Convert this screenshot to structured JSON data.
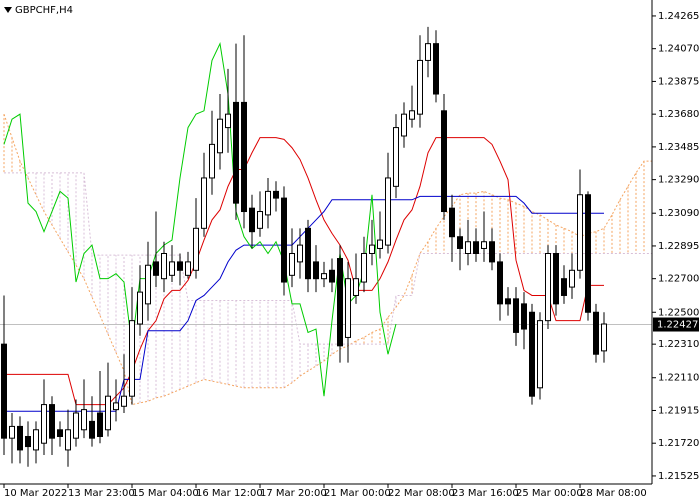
{
  "chart_data": {
    "type": "candlestick",
    "title": "GBPCHF,H4",
    "categories": [
      "10 Mar 2022",
      null,
      null,
      null,
      null,
      null,
      null,
      null,
      "13 Mar 23:00",
      null,
      null,
      null,
      null,
      null,
      null,
      null,
      "15 Mar 04:00",
      null,
      null,
      null,
      null,
      null,
      null,
      null,
      "16 Mar 12:00",
      null,
      null,
      null,
      null,
      null,
      null,
      null,
      "17 Mar 20:00",
      null,
      null,
      null,
      null,
      null,
      null,
      null,
      "21 Mar 00:00",
      null,
      null,
      null,
      null,
      null,
      null,
      null,
      "22 Mar 08:00",
      null,
      null,
      null,
      null,
      null,
      null,
      null,
      "23 Mar 16:00",
      null,
      null,
      null,
      null,
      null,
      null,
      null,
      "25 Mar 00:00",
      null,
      null,
      null,
      null,
      null,
      null,
      null,
      "28 Mar 08:00",
      null,
      null,
      null,
      null,
      null,
      null,
      null,
      null,
      null
    ],
    "candles": {
      "up_color": "#ffffff",
      "down_color": "#000000",
      "open": [
        1.2231,
        1.2175,
        1.2182,
        1.2176,
        1.2168,
        1.2172,
        1.2195,
        1.218,
        1.2168,
        1.2175,
        1.218,
        1.2185,
        1.219,
        1.218,
        1.2192,
        1.2194,
        1.22,
        1.2243,
        1.2255,
        1.228,
        1.227,
        1.2272,
        1.228,
        1.2272,
        1.2275,
        1.23,
        1.233,
        1.2345,
        1.236,
        1.2375,
        1.2375,
        1.2312,
        1.23,
        1.2308,
        1.2322,
        1.2318,
        1.2272,
        1.228,
        1.23,
        1.228,
        1.227,
        1.2275,
        1.2282,
        1.2235,
        1.226,
        1.2268,
        1.2285,
        1.2288,
        1.229,
        1.2325,
        1.2355,
        1.2365,
        1.2368,
        1.24,
        1.241,
        1.237,
        1.2312,
        1.2295,
        1.2285,
        1.2292,
        1.2288,
        1.2292,
        1.228,
        1.2258,
        1.2258,
        1.2255,
        1.225,
        1.2205,
        1.2245,
        1.2285,
        1.227,
        1.2265,
        1.2275,
        1.232,
        1.225,
        1.2227,
        null,
        null,
        null,
        null,
        null,
        null
      ],
      "high": [
        1.226,
        1.219,
        1.2188,
        1.2185,
        1.2185,
        1.221,
        1.22,
        1.2185,
        1.2192,
        1.2198,
        1.221,
        1.22,
        1.2215,
        1.222,
        1.221,
        1.2225,
        1.2265,
        1.2278,
        1.2292,
        1.231,
        1.2292,
        1.229,
        1.2285,
        1.2286,
        1.2318,
        1.2345,
        1.237,
        1.238,
        1.2395,
        1.241,
        1.2415,
        1.232,
        1.2322,
        1.233,
        1.2328,
        1.2325,
        1.23,
        1.23,
        1.2305,
        1.229,
        1.228,
        1.2282,
        1.229,
        1.228,
        1.2285,
        1.2295,
        1.2305,
        1.231,
        1.2345,
        1.2368,
        1.2375,
        1.2385,
        1.2415,
        1.242,
        1.2418,
        1.238,
        1.232,
        1.23,
        1.2305,
        1.23,
        1.231,
        1.23,
        1.2285,
        1.2265,
        1.2265,
        1.2262,
        1.2255,
        1.225,
        1.229,
        1.229,
        1.2278,
        1.2285,
        1.2335,
        1.2322,
        1.2255,
        1.225,
        null,
        null,
        null,
        null,
        null,
        null
      ],
      "low": [
        1.2165,
        1.216,
        1.216,
        1.2158,
        1.216,
        1.2165,
        1.2165,
        1.217,
        1.2158,
        1.217,
        1.2175,
        1.217,
        1.2172,
        1.2176,
        1.2185,
        1.219,
        1.2195,
        1.2236,
        1.2245,
        1.2265,
        1.2262,
        1.2268,
        1.2266,
        1.227,
        1.227,
        1.2295,
        1.232,
        1.2335,
        1.2345,
        1.2305,
        1.23,
        1.2288,
        1.2295,
        1.23,
        1.231,
        1.226,
        1.2265,
        1.227,
        1.2262,
        1.2262,
        1.2265,
        1.2262,
        1.222,
        1.222,
        1.2255,
        1.2262,
        1.2278,
        1.2282,
        1.2285,
        1.2318,
        1.2348,
        1.236,
        1.236,
        1.239,
        1.2375,
        1.2305,
        1.228,
        1.2275,
        1.2278,
        1.228,
        1.228,
        1.2275,
        1.2245,
        1.2248,
        1.223,
        1.2228,
        1.2195,
        1.2198,
        1.224,
        1.2248,
        1.2255,
        1.2258,
        1.227,
        1.2245,
        1.222,
        1.222,
        null,
        null,
        null,
        null,
        null,
        null
      ],
      "close": [
        1.2175,
        1.2182,
        1.2168,
        1.217,
        1.218,
        1.2195,
        1.2175,
        1.2176,
        1.218,
        1.219,
        1.2192,
        1.2175,
        1.2176,
        1.22,
        1.2196,
        1.22,
        1.2245,
        1.2262,
        1.2278,
        1.2272,
        1.2285,
        1.228,
        1.2275,
        1.228,
        1.23,
        1.233,
        1.235,
        1.2365,
        1.2368,
        1.2315,
        1.231,
        1.2298,
        1.231,
        1.2322,
        1.2318,
        1.2268,
        1.2285,
        1.229,
        1.227,
        1.227,
        1.2273,
        1.2268,
        1.223,
        1.227,
        1.227,
        1.2285,
        1.229,
        1.2293,
        1.233,
        1.236,
        1.2368,
        1.237,
        1.24,
        1.241,
        1.238,
        1.231,
        1.2295,
        1.2288,
        1.2292,
        1.2285,
        1.2292,
        1.228,
        1.2255,
        1.2255,
        1.2238,
        1.224,
        1.22,
        1.2245,
        1.2285,
        1.2255,
        1.226,
        1.2275,
        1.232,
        1.225,
        1.2225,
        1.2243,
        null,
        null,
        null,
        null,
        null,
        null
      ]
    },
    "lines": [
      {
        "color": "#dd0000",
        "values": [
          1.2213,
          1.2213,
          1.2213,
          1.2213,
          1.2213,
          1.2213,
          1.2213,
          1.2213,
          1.2213,
          1.2195,
          1.2195,
          1.2195,
          1.2195,
          1.2195,
          1.22,
          1.2205,
          1.2215,
          1.2228,
          1.2239,
          1.2245,
          1.2258,
          1.2263,
          1.2263,
          1.2269,
          1.228,
          1.2293,
          1.2305,
          1.2311,
          1.2325,
          1.2335,
          1.2335,
          1.2345,
          1.2354,
          1.2354,
          1.2354,
          1.2353,
          1.2348,
          1.2341,
          1.233,
          1.2317,
          1.2305,
          1.2297,
          1.229,
          1.2281,
          1.2263,
          1.2263,
          1.2263,
          1.227,
          1.228,
          1.2293,
          1.2305,
          1.2311,
          1.2325,
          1.2345,
          1.2354,
          1.2354,
          1.2354,
          1.2354,
          1.2354,
          1.2354,
          1.2354,
          1.235,
          1.234,
          1.2329,
          1.2281,
          1.2263,
          1.226,
          1.226,
          1.226,
          1.2245,
          1.2245,
          1.2245,
          1.2245,
          1.2266,
          1.2266,
          1.2266,
          null,
          null,
          null,
          null,
          null,
          null
        ]
      },
      {
        "color": "#0000cc",
        "values": [
          1.2191,
          1.2191,
          1.2191,
          1.2191,
          1.2191,
          1.2191,
          1.2191,
          1.2191,
          1.2191,
          1.2191,
          1.2191,
          1.2191,
          1.2191,
          1.2191,
          1.2191,
          1.221,
          1.221,
          1.221,
          1.2239,
          1.2239,
          1.2239,
          1.2239,
          1.2239,
          1.2245,
          1.2257,
          1.226,
          1.2265,
          1.227,
          1.228,
          1.2287,
          1.229,
          1.229,
          1.229,
          1.229,
          1.229,
          1.229,
          1.229,
          1.2295,
          1.23,
          1.2305,
          1.231,
          1.2317,
          1.2317,
          1.2317,
          1.2317,
          1.2317,
          1.2317,
          1.2317,
          1.2317,
          1.2317,
          1.2317,
          1.2317,
          1.2319,
          1.2319,
          1.2319,
          1.2319,
          1.2319,
          1.2319,
          1.2319,
          1.2319,
          1.2319,
          1.2319,
          1.2319,
          1.2319,
          1.2319,
          1.2315,
          1.2309,
          1.2309,
          1.2309,
          1.2309,
          1.2309,
          1.2309,
          1.2309,
          1.2309,
          1.2309,
          1.2309,
          null,
          null,
          null,
          null,
          null,
          null
        ]
      },
      {
        "color": "#00cc00",
        "values": [
          1.235,
          1.2365,
          1.2368,
          1.2315,
          1.231,
          1.2298,
          1.231,
          1.2322,
          1.2318,
          1.2268,
          1.2285,
          1.229,
          1.227,
          1.227,
          1.2273,
          1.2268,
          1.223,
          1.227,
          1.227,
          1.2285,
          1.229,
          1.2293,
          1.233,
          1.236,
          1.2368,
          1.237,
          1.24,
          1.241,
          1.238,
          1.231,
          1.2295,
          1.2288,
          1.2292,
          1.2285,
          1.2292,
          1.228,
          1.2255,
          1.2255,
          1.2238,
          1.224,
          1.22,
          1.2245,
          1.2285,
          1.2255,
          1.226,
          1.2275,
          1.232,
          1.225,
          1.2225,
          1.2243,
          null,
          null,
          null,
          null,
          null,
          null,
          null,
          null,
          null,
          null,
          null,
          null,
          null,
          null,
          null,
          null,
          null,
          null,
          null,
          null,
          null,
          null,
          null,
          null,
          null,
          null,
          null,
          null,
          null,
          null,
          null,
          null
        ]
      }
    ],
    "cloud": {
      "up_color": "#f4a460",
      "down_color": "#d8bfd8",
      "span_a": [
        1.2368,
        1.2354,
        1.234,
        1.233,
        1.232,
        1.231,
        1.2302,
        1.2294,
        1.2286,
        1.2278,
        1.227,
        1.2259,
        1.2248,
        1.2237,
        1.2226,
        1.2215,
        1.2195,
        1.2196,
        1.2197,
        1.2199,
        1.22,
        1.2202,
        1.2204,
        1.2206,
        1.2208,
        1.221,
        1.2209,
        1.2208,
        1.2207,
        1.2206,
        1.2205,
        1.2205,
        1.2205,
        1.2205,
        1.2205,
        1.2205,
        1.2208,
        1.2212,
        1.2215,
        1.2218,
        1.2221,
        1.2225,
        1.2228,
        1.223,
        1.2233,
        1.2235,
        1.2238,
        1.224,
        1.2247,
        1.2253,
        1.226,
        1.2272,
        1.2285,
        1.2292,
        1.23,
        1.2307,
        1.2313,
        1.232,
        1.2321,
        1.2321,
        1.2322,
        1.232,
        1.2318,
        1.2317,
        1.2315,
        1.2313,
        1.231,
        1.2308,
        1.2305,
        1.2302,
        1.23,
        1.2298,
        1.2295,
        1.2297,
        1.2298,
        1.23,
        1.2308,
        1.2317,
        1.2325,
        1.2333,
        1.234,
        1.234
      ],
      "span_b": [
        1.2333,
        1.2333,
        1.2333,
        1.2333,
        1.2333,
        1.2333,
        1.2333,
        1.2333,
        1.2333,
        1.2333,
        1.2333,
        1.2284,
        1.2284,
        1.2284,
        1.2284,
        1.2284,
        1.2284,
        1.2284,
        1.2284,
        1.2284,
        1.2284,
        1.2284,
        1.2284,
        1.2257,
        1.2257,
        1.2257,
        1.2257,
        1.2257,
        1.2257,
        1.2257,
        1.2257,
        1.2257,
        1.2257,
        1.2257,
        1.2257,
        1.2257,
        1.2257,
        1.2231,
        1.2231,
        1.2231,
        1.2231,
        1.2231,
        1.2231,
        1.2231,
        1.2231,
        1.2231,
        1.2231,
        1.2231,
        1.2231,
        1.226,
        1.226,
        1.226,
        1.2285,
        1.2285,
        1.2285,
        1.2285,
        1.2285,
        1.2285,
        1.2285,
        1.2285,
        1.2285,
        1.2285,
        1.2285,
        1.2285,
        1.2285,
        1.2285,
        1.2285,
        1.2285,
        1.2285,
        1.2285,
        1.2285,
        1.2285,
        1.2285,
        1.2285,
        1.2285,
        1.2285,
        1.2285,
        1.2285,
        1.2285,
        1.2285,
        1.2285,
        1.2285
      ]
    },
    "current_price": 1.22427,
    "ylim": [
      1.21477,
      1.2436
    ],
    "yticks": [
      1.24265,
      {
        "value": 1.2407,
        "label": "1.24070"
      },
      1.23875,
      {
        "value": 1.2368,
        "label": "1.23680"
      },
      1.23485,
      {
        "value": 1.2329,
        "label": "1.23290"
      },
      {
        "value": 1.2309,
        "label": "1.23090"
      },
      1.22895,
      {
        "value": 1.227,
        "label": "1.22700"
      },
      {
        "value": 1.225,
        "label": "1.22500"
      },
      {
        "value": 1.2231,
        "label": "1.22310"
      },
      {
        "value": 1.2211,
        "label": "1.22110"
      },
      1.21915,
      {
        "value": 1.2172,
        "label": "1.21720"
      },
      1.21525
    ]
  }
}
